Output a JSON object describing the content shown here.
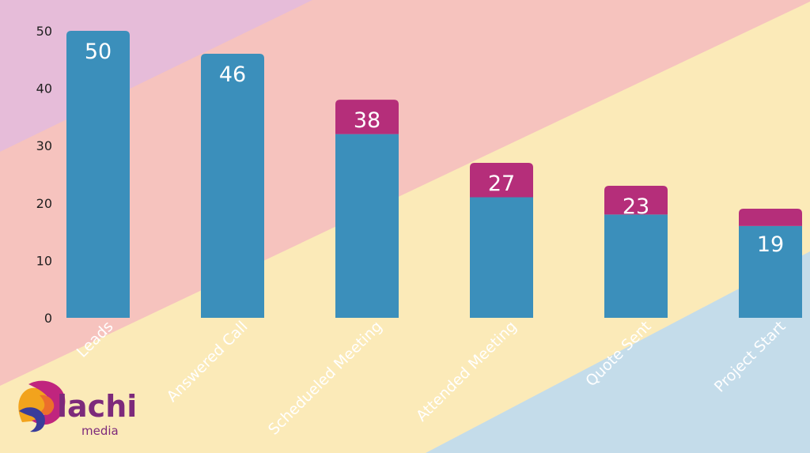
{
  "chart_data": {
    "type": "bar",
    "categories": [
      "Leads",
      "Answered Call",
      "Schedueled Meeting",
      "Attended Meeting",
      "Quote Sent",
      "Project Start"
    ],
    "series": [
      {
        "values": [
          50,
          46,
          32,
          21,
          18,
          16
        ],
        "color": "#3b8fbb"
      },
      {
        "values": [
          0,
          0,
          6,
          6,
          5,
          3
        ],
        "color": "#b52e7a"
      }
    ],
    "data_labels": [
      "50",
      "46",
      "38",
      "27",
      "23",
      "19"
    ],
    "yticks": [
      0,
      10,
      20,
      30,
      40,
      50
    ],
    "ylim": [
      0,
      50
    ],
    "title": "",
    "xlabel": "",
    "ylabel": "",
    "grid": false,
    "background_colors": [
      "#e6bcd9",
      "#f6c3be",
      "#fbeab8",
      "#c4dcea"
    ]
  },
  "logo": {
    "name": "lachi",
    "tagline": "media",
    "icon": "swirl-logo-icon"
  }
}
